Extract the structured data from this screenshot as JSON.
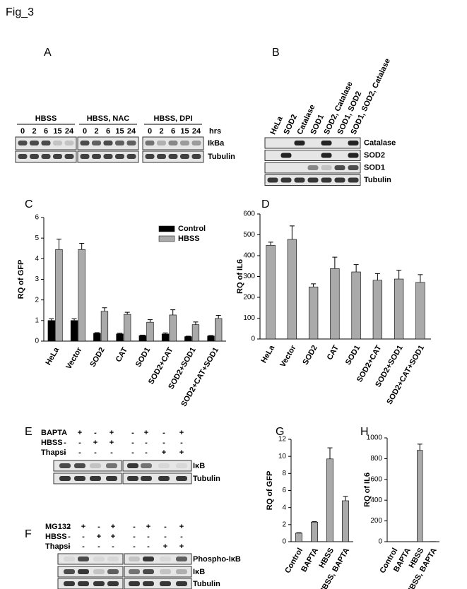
{
  "figure_title": "Fig_3",
  "blots": {
    "A": {
      "label": "A",
      "groups": [
        "HBSS",
        "HBSS, NAC",
        "HBSS, DPI"
      ],
      "timepoints": [
        "0",
        "2",
        "6",
        "15",
        "24"
      ],
      "time_unit": "hrs",
      "rows": [
        "IkBa",
        "Tubulin"
      ]
    },
    "B": {
      "label": "B",
      "lanes": [
        "HeLa",
        "SOD2",
        "Catalase",
        "SOD1",
        "SOD2, Catalase",
        "SOD1, SOD2",
        "SOD1, SOD2, Catalase"
      ],
      "rows": [
        "Catalase",
        "SOD2",
        "SOD1",
        "Tubulin"
      ]
    },
    "E": {
      "label": "E",
      "treatments": [
        {
          "name": "BAPTA",
          "signs": [
            "-",
            "+",
            "-",
            "+",
            "-",
            "+",
            "-",
            "+"
          ]
        },
        {
          "name": "HBSS",
          "signs": [
            "-",
            "-",
            "+",
            "+",
            "-",
            "-",
            "-",
            "-"
          ]
        },
        {
          "name": "Thapsi",
          "signs": [
            "-",
            "-",
            "-",
            "-",
            "-",
            "-",
            "+",
            "+"
          ]
        }
      ],
      "rows": [
        "IκB",
        "Tubulin"
      ]
    },
    "F": {
      "label": "F",
      "treatments": [
        {
          "name": "MG132",
          "signs": [
            "-",
            "+",
            "-",
            "+",
            "-",
            "+",
            "-",
            "+"
          ]
        },
        {
          "name": "HBSS",
          "signs": [
            "-",
            "-",
            "+",
            "+",
            "-",
            "-",
            "-",
            "-"
          ]
        },
        {
          "name": "Thapsi",
          "signs": [
            "-",
            "-",
            "-",
            "-",
            "-",
            "-",
            "+",
            "+"
          ]
        }
      ],
      "rows": [
        "Phospho-IκB",
        "IκB",
        "Tubulin"
      ]
    }
  },
  "chart_data": [
    {
      "type": "bar",
      "label": "C",
      "y_label": "RQ of GFP",
      "categories": [
        "HeLa",
        "Vector",
        "SOD2",
        "CAT",
        "SOD1",
        "SOD2+CAT",
        "SOD2+SOD1",
        "SOD2+CAT+SOD1"
      ],
      "series": [
        {
          "name": "Control",
          "color": "#000000",
          "values": [
            1.0,
            1.0,
            0.38,
            0.35,
            0.27,
            0.35,
            0.22,
            0.25
          ],
          "errors": [
            0.08,
            0.08,
            0.03,
            0.03,
            0.02,
            0.05,
            0.02,
            0.02
          ]
        },
        {
          "name": "HBSS",
          "color": "#aaaaaa",
          "values": [
            4.45,
            4.45,
            1.45,
            1.3,
            0.92,
            1.27,
            0.8,
            1.1
          ],
          "errors": [
            0.5,
            0.3,
            0.17,
            0.1,
            0.12,
            0.25,
            0.13,
            0.15
          ]
        }
      ],
      "ylim": [
        0,
        6
      ],
      "yticks": [
        0,
        1,
        2,
        3,
        4,
        5,
        6
      ],
      "legend": "upper right"
    },
    {
      "type": "bar",
      "label": "D",
      "y_label": "RQ of IL6",
      "categories": [
        "HeLa",
        "Vector",
        "SOD2",
        "CAT",
        "SOD1",
        "SOD2+CAT",
        "SOD2+SOD1",
        "SOD2+CAT+SOD1"
      ],
      "values": [
        450,
        478,
        250,
        338,
        322,
        282,
        288,
        272
      ],
      "errors": [
        15,
        65,
        15,
        55,
        35,
        32,
        42,
        37
      ],
      "color": "#aaaaaa",
      "ylim": [
        0,
        600
      ],
      "yticks": [
        0,
        100,
        200,
        300,
        400,
        500,
        600
      ]
    },
    {
      "type": "bar",
      "label": "G",
      "y_label": "RQ of GFP",
      "categories": [
        "Control",
        "BAPTA",
        "HBSS",
        "HBSS, BAPTA"
      ],
      "values": [
        1.0,
        2.3,
        9.7,
        4.8
      ],
      "errors": [
        0.05,
        0.05,
        1.3,
        0.5
      ],
      "color": "#aaaaaa",
      "ylim": [
        0,
        12
      ],
      "yticks": [
        0,
        2,
        4,
        6,
        8,
        10,
        12
      ]
    },
    {
      "type": "bar",
      "label": "H",
      "y_label": "RQ of IL6",
      "categories": [
        "Control",
        "BAPTA",
        "HBSS",
        "HBSS, BAPTA"
      ],
      "values": [
        1,
        1,
        880,
        2
      ],
      "errors": [
        0,
        0,
        60,
        0
      ],
      "color": "#aaaaaa",
      "ylim": [
        0,
        1000
      ],
      "yticks": [
        0,
        200,
        400,
        600,
        800,
        1000
      ]
    }
  ]
}
